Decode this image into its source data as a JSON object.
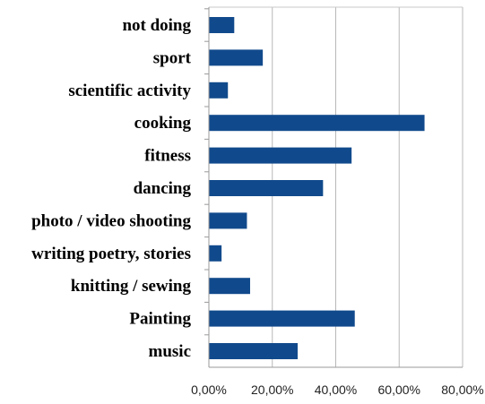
{
  "colors": {
    "bar": "#114a8c",
    "grid": "#b8b8b8"
  },
  "chart_data": {
    "type": "bar",
    "orientation": "horizontal",
    "categories": [
      "not doing",
      "sport",
      "scientific activity",
      "cooking",
      "fitness",
      "dancing",
      "photo / video shooting",
      "writing poetry, stories",
      "knitting / sewing",
      "Painting",
      "music"
    ],
    "values": [
      8,
      17,
      6,
      68,
      45,
      36,
      12,
      4,
      13,
      46,
      28
    ],
    "x_ticks": [
      "0,00%",
      "20,00%",
      "40,00%",
      "60,00%",
      "80,00%"
    ],
    "xlim": [
      0,
      80
    ],
    "title": "",
    "xlabel": "",
    "ylabel": "",
    "grid": "vertical",
    "legend": "none"
  }
}
